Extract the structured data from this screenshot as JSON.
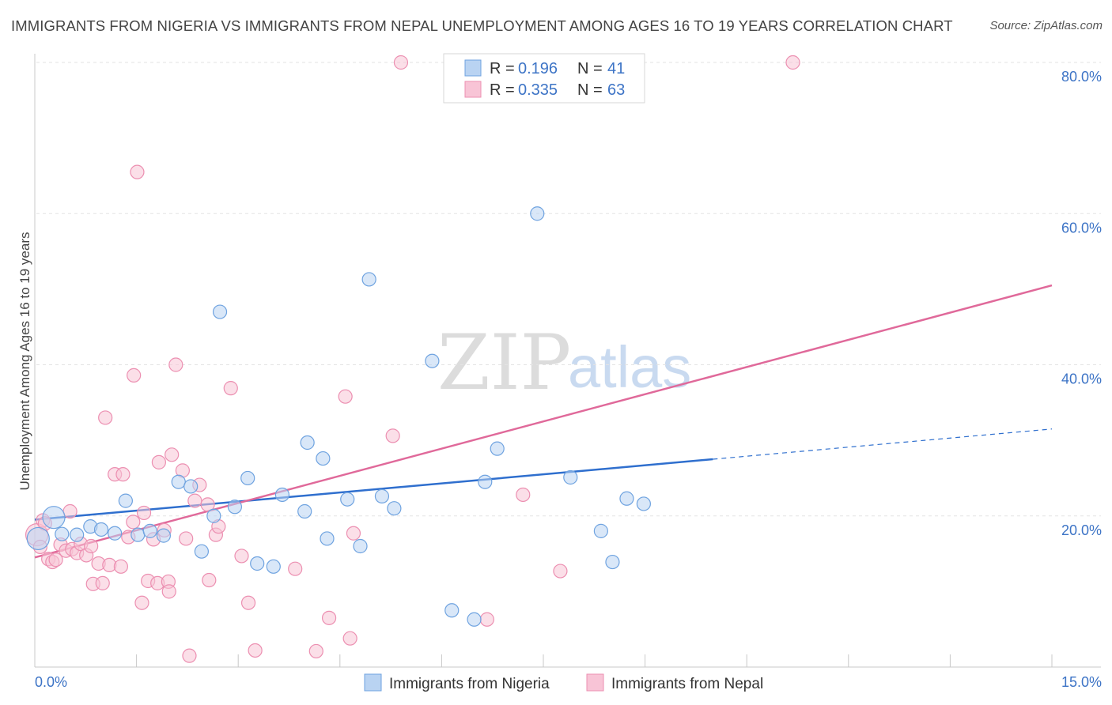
{
  "header": {
    "title": "IMMIGRANTS FROM NIGERIA VS IMMIGRANTS FROM NEPAL UNEMPLOYMENT AMONG AGES 16 TO 19 YEARS CORRELATION CHART",
    "source": "Source: ZipAtlas.com"
  },
  "watermark": {
    "zip": "ZIP",
    "atlas": "atlas"
  },
  "legend": {
    "nigeria": {
      "r_label": "R =",
      "r_value": "0.196",
      "n_label": "N =",
      "n_value": "41"
    },
    "nepal": {
      "r_label": "R =",
      "r_value": "0.335",
      "n_label": "N =",
      "n_value": "63"
    }
  },
  "chart_data": {
    "type": "scatter",
    "title": "IMMIGRANTS FROM NIGERIA VS IMMIGRANTS FROM NEPAL UNEMPLOYMENT AMONG AGES 16 TO 19 YEARS CORRELATION CHART",
    "xlabel": "",
    "ylabel": "Unemployment Among Ages 16 to 19 years",
    "xlim": [
      0,
      15
    ],
    "ylim": [
      0,
      80
    ],
    "x_tick_labels": [
      {
        "value": 0,
        "label": "0.0%"
      },
      {
        "value": 15,
        "label": "15.0%"
      }
    ],
    "y_tick_labels": [
      {
        "value": 20,
        "label": "20.0%"
      },
      {
        "value": 40,
        "label": "40.0%"
      },
      {
        "value": 60,
        "label": "60.0%"
      },
      {
        "value": 80,
        "label": "80.0%"
      }
    ],
    "grid": "horizontal dashed",
    "legend_position": "top-center",
    "series": [
      {
        "name": "Immigrants from Nigeria",
        "color": "#6fa3e0",
        "fill": "#b9d3f2",
        "line_color": "#2f6fce",
        "trend": {
          "x0": 0.0,
          "y0": 19.5,
          "x1": 10.0,
          "y1": 27.5,
          "dash_to_x": 15.0,
          "dash_to_y": 31.5
        },
        "points": [
          {
            "x": 0.05,
            "y": 17.0,
            "big": true
          },
          {
            "x": 0.28,
            "y": 19.8,
            "big": true
          },
          {
            "x": 0.62,
            "y": 17.5
          },
          {
            "x": 0.82,
            "y": 18.6
          },
          {
            "x": 0.98,
            "y": 18.2
          },
          {
            "x": 1.18,
            "y": 17.7
          },
          {
            "x": 1.34,
            "y": 22.0
          },
          {
            "x": 1.52,
            "y": 17.5
          },
          {
            "x": 1.7,
            "y": 18.0
          },
          {
            "x": 1.9,
            "y": 17.4
          },
          {
            "x": 2.12,
            "y": 24.5
          },
          {
            "x": 2.3,
            "y": 23.9
          },
          {
            "x": 2.46,
            "y": 15.3
          },
          {
            "x": 2.64,
            "y": 20.0
          },
          {
            "x": 2.73,
            "y": 47.0
          },
          {
            "x": 2.95,
            "y": 21.2
          },
          {
            "x": 3.14,
            "y": 25.0
          },
          {
            "x": 3.28,
            "y": 13.7
          },
          {
            "x": 3.65,
            "y": 22.8
          },
          {
            "x": 3.52,
            "y": 13.3
          },
          {
            "x": 3.98,
            "y": 20.6
          },
          {
            "x": 4.02,
            "y": 29.7
          },
          {
            "x": 4.25,
            "y": 27.6
          },
          {
            "x": 4.31,
            "y": 17.0
          },
          {
            "x": 4.61,
            "y": 22.2
          },
          {
            "x": 4.8,
            "y": 16.0
          },
          {
            "x": 4.93,
            "y": 51.3
          },
          {
            "x": 5.12,
            "y": 22.6
          },
          {
            "x": 5.3,
            "y": 21.0
          },
          {
            "x": 5.86,
            "y": 40.5
          },
          {
            "x": 6.15,
            "y": 7.5
          },
          {
            "x": 6.48,
            "y": 6.3
          },
          {
            "x": 6.64,
            "y": 24.5
          },
          {
            "x": 6.82,
            "y": 28.9
          },
          {
            "x": 7.41,
            "y": 60.0
          },
          {
            "x": 7.9,
            "y": 25.1
          },
          {
            "x": 8.35,
            "y": 18.0
          },
          {
            "x": 8.52,
            "y": 13.9
          },
          {
            "x": 8.73,
            "y": 22.3
          },
          {
            "x": 8.98,
            "y": 21.6
          },
          {
            "x": 0.4,
            "y": 17.6
          }
        ]
      },
      {
        "name": "Immigrants from Nepal",
        "color": "#ec8fb1",
        "fill": "#f8c4d6",
        "line_color": "#e0699a",
        "trend": {
          "x0": 0.0,
          "y0": 14.5,
          "x1": 15.0,
          "y1": 50.5
        },
        "points": [
          {
            "x": 0.03,
            "y": 17.5,
            "big": true
          },
          {
            "x": 0.08,
            "y": 15.9
          },
          {
            "x": 0.12,
            "y": 19.4
          },
          {
            "x": 0.2,
            "y": 14.3
          },
          {
            "x": 0.26,
            "y": 13.9
          },
          {
            "x": 0.31,
            "y": 14.2
          },
          {
            "x": 0.38,
            "y": 16.2
          },
          {
            "x": 0.46,
            "y": 15.4
          },
          {
            "x": 0.55,
            "y": 15.6
          },
          {
            "x": 0.52,
            "y": 20.6
          },
          {
            "x": 0.62,
            "y": 15.1
          },
          {
            "x": 0.68,
            "y": 16.3
          },
          {
            "x": 0.76,
            "y": 14.8
          },
          {
            "x": 0.83,
            "y": 16.0
          },
          {
            "x": 0.86,
            "y": 11.0
          },
          {
            "x": 0.94,
            "y": 13.7
          },
          {
            "x": 1.0,
            "y": 11.1
          },
          {
            "x": 1.04,
            "y": 33.0
          },
          {
            "x": 1.1,
            "y": 13.5
          },
          {
            "x": 1.18,
            "y": 25.5
          },
          {
            "x": 1.27,
            "y": 13.3
          },
          {
            "x": 1.3,
            "y": 25.5
          },
          {
            "x": 1.38,
            "y": 17.2
          },
          {
            "x": 1.45,
            "y": 19.2
          },
          {
            "x": 1.46,
            "y": 38.6
          },
          {
            "x": 1.51,
            "y": 65.5
          },
          {
            "x": 1.58,
            "y": 8.5
          },
          {
            "x": 1.61,
            "y": 20.4
          },
          {
            "x": 1.67,
            "y": 11.4
          },
          {
            "x": 1.75,
            "y": 16.9
          },
          {
            "x": 1.81,
            "y": 11.1
          },
          {
            "x": 1.83,
            "y": 27.1
          },
          {
            "x": 1.91,
            "y": 18.1
          },
          {
            "x": 1.97,
            "y": 11.3
          },
          {
            "x": 1.98,
            "y": 10.0
          },
          {
            "x": 2.02,
            "y": 28.1
          },
          {
            "x": 2.08,
            "y": 40.0
          },
          {
            "x": 2.18,
            "y": 26.0
          },
          {
            "x": 2.23,
            "y": 17.0
          },
          {
            "x": 2.28,
            "y": 1.5
          },
          {
            "x": 2.36,
            "y": 22.0
          },
          {
            "x": 2.43,
            "y": 24.1
          },
          {
            "x": 2.55,
            "y": 21.5
          },
          {
            "x": 2.57,
            "y": 11.5
          },
          {
            "x": 2.67,
            "y": 17.5
          },
          {
            "x": 2.71,
            "y": 18.6
          },
          {
            "x": 2.89,
            "y": 36.9
          },
          {
            "x": 3.05,
            "y": 14.7
          },
          {
            "x": 3.15,
            "y": 8.5
          },
          {
            "x": 3.25,
            "y": 2.2
          },
          {
            "x": 3.84,
            "y": 13.0
          },
          {
            "x": 4.15,
            "y": 2.1
          },
          {
            "x": 4.34,
            "y": 6.5
          },
          {
            "x": 4.65,
            "y": 3.8
          },
          {
            "x": 4.58,
            "y": 35.8
          },
          {
            "x": 4.7,
            "y": 17.7
          },
          {
            "x": 5.28,
            "y": 30.6
          },
          {
            "x": 5.4,
            "y": 80.0
          },
          {
            "x": 6.67,
            "y": 6.3
          },
          {
            "x": 7.2,
            "y": 22.8
          },
          {
            "x": 7.75,
            "y": 12.7
          },
          {
            "x": 11.18,
            "y": 80.0
          },
          {
            "x": 0.15,
            "y": 19.0
          }
        ]
      }
    ]
  },
  "bottom_legend": {
    "nigeria_label": "Immigrants from Nigeria",
    "nepal_label": "Immigrants from Nepal"
  }
}
